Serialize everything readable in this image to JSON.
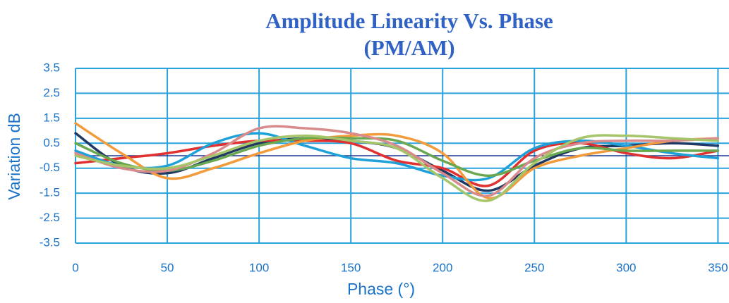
{
  "chart_data": {
    "type": "line",
    "title": "Amplitude Linearity Vs. Phase",
    "subtitle": "(PM/AM)",
    "x_label": "Phase (°)",
    "y_label": "Variation dB",
    "x": [
      0,
      25,
      50,
      75,
      100,
      125,
      150,
      175,
      200,
      225,
      250,
      275,
      300,
      325,
      350
    ],
    "xlim": [
      0,
      356
    ],
    "xticks": [
      0,
      50,
      100,
      150,
      200,
      250,
      300,
      350
    ],
    "ylim": [
      -3.5,
      3.5
    ],
    "yticks": [
      3.5,
      2.5,
      1.5,
      0.5,
      -0.5,
      -1.5,
      -2.5,
      -3.5
    ],
    "grid": true,
    "zero_line_color": "#1f3a93",
    "series": [
      {
        "color": "#1f3864",
        "values": [
          0.9,
          -0.4,
          -0.7,
          -0.1,
          0.5,
          0.7,
          0.6,
          0.3,
          -0.6,
          -1.4,
          -0.4,
          0.3,
          0.4,
          0.5,
          0.4
        ]
      },
      {
        "color": "#e03030",
        "values": [
          -0.3,
          -0.1,
          0.1,
          0.4,
          0.6,
          0.6,
          0.5,
          -0.2,
          -0.5,
          -1.2,
          0.2,
          0.5,
          0.1,
          -0.1,
          0.2
        ]
      },
      {
        "color": "#1ea0d8",
        "values": [
          0.2,
          -0.4,
          -0.4,
          0.5,
          0.9,
          0.4,
          -0.1,
          -0.3,
          -0.8,
          -0.9,
          0.3,
          0.6,
          0.4,
          0.1,
          -0.1
        ]
      },
      {
        "color": "#f39a3a",
        "values": [
          1.3,
          0.1,
          -0.9,
          -0.5,
          0.1,
          0.6,
          0.8,
          0.8,
          0.1,
          -1.7,
          -0.5,
          0.0,
          0.3,
          0.6,
          0.7
        ]
      },
      {
        "color": "#6aa84f",
        "values": [
          0.5,
          -0.3,
          -0.6,
          -0.2,
          0.4,
          0.7,
          0.7,
          0.6,
          -0.2,
          -0.8,
          -0.2,
          0.3,
          0.2,
          0.2,
          0.2
        ]
      },
      {
        "color": "#d98a8a",
        "values": [
          0.1,
          -0.5,
          -0.6,
          0.1,
          1.1,
          1.1,
          0.9,
          0.4,
          -0.7,
          -1.6,
          -0.1,
          0.5,
          0.6,
          0.6,
          0.7
        ]
      },
      {
        "color": "#a6c56a",
        "values": [
          0.0,
          -0.4,
          -0.5,
          0.0,
          0.6,
          0.8,
          0.6,
          0.3,
          -0.9,
          -1.8,
          -0.3,
          0.7,
          0.8,
          0.7,
          0.6
        ]
      }
    ]
  }
}
